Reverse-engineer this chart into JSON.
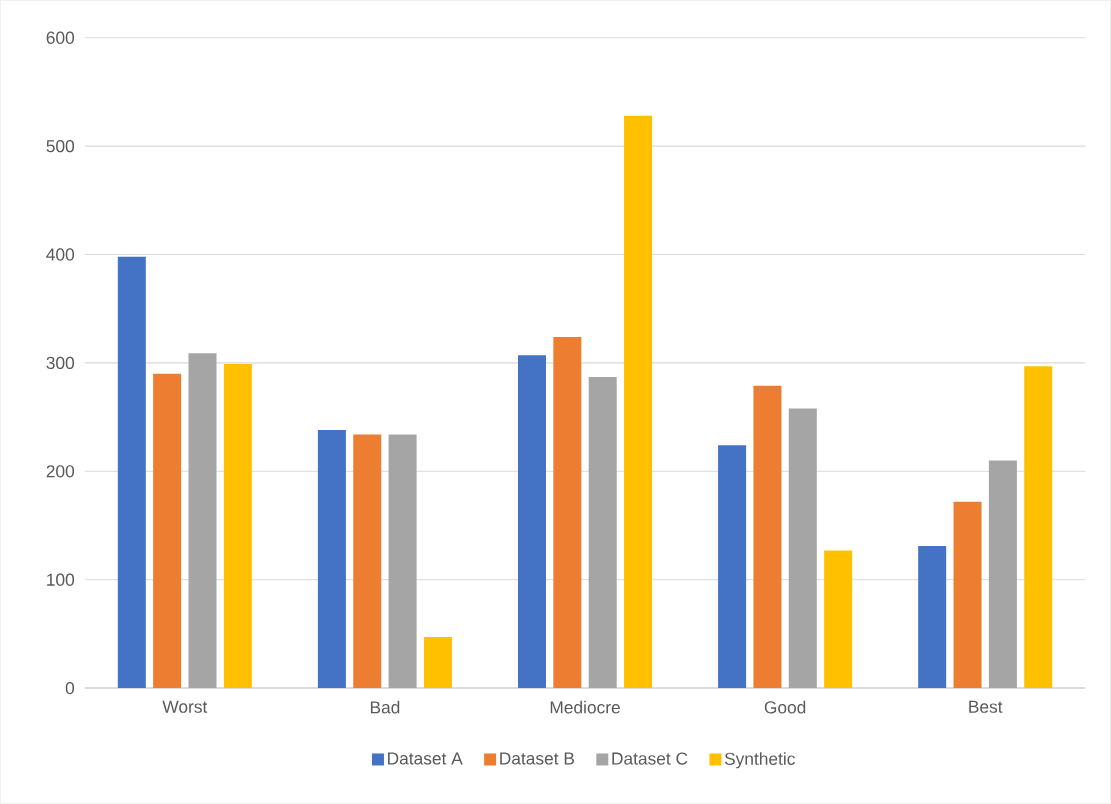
{
  "chart_data": {
    "type": "bar",
    "categories": [
      "Worst",
      "Bad",
      "Mediocre",
      "Good",
      "Best"
    ],
    "series": [
      {
        "name": "Dataset A",
        "color": "#4472c4",
        "values": [
          398,
          238,
          307,
          224,
          131
        ]
      },
      {
        "name": "Dataset B",
        "color": "#ed7d31",
        "values": [
          290,
          234,
          324,
          279,
          172
        ]
      },
      {
        "name": "Dataset C",
        "color": "#a5a5a5",
        "values": [
          309,
          234,
          287,
          258,
          210
        ]
      },
      {
        "name": "Synthetic",
        "color": "#ffc000",
        "values": [
          299,
          47,
          528,
          127,
          297
        ]
      }
    ],
    "ylim": [
      0,
      600
    ],
    "yticks": [
      0,
      100,
      200,
      300,
      400,
      500,
      600
    ],
    "grid": "y",
    "legend": "bottom"
  }
}
